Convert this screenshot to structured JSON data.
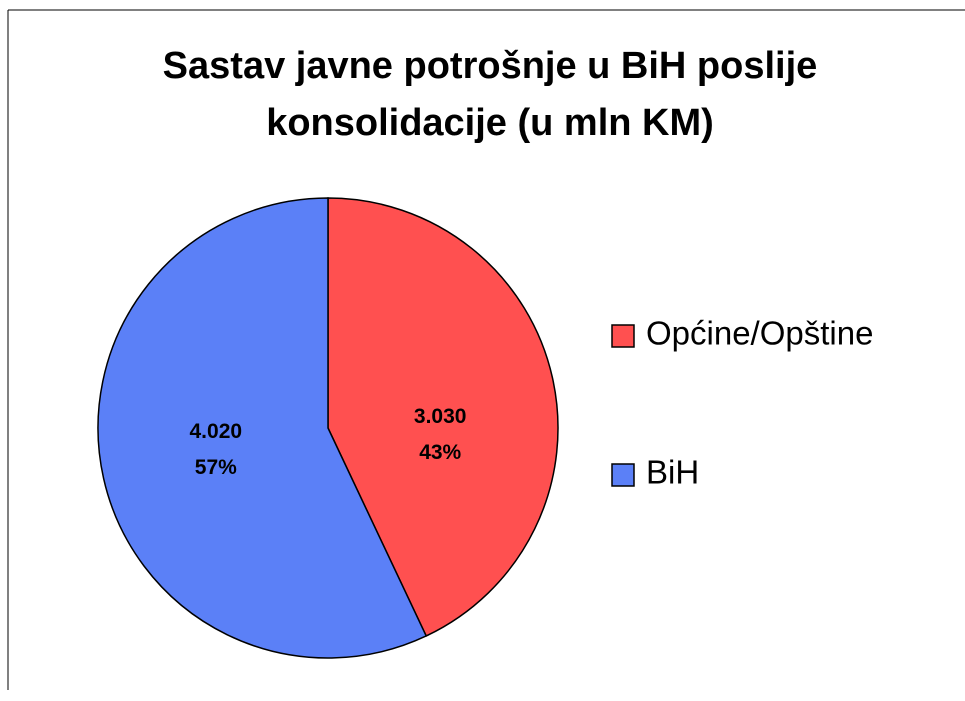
{
  "chart_data": {
    "type": "pie",
    "title": "Sastav javne potrošnje u BiH poslije konsolidacije (u mln KM)",
    "categories": [
      "Općine/Opštine",
      "BiH"
    ],
    "values": [
      3030,
      4020
    ],
    "value_labels": [
      "3.030",
      "4.020"
    ],
    "percents": [
      43,
      57
    ],
    "percent_labels": [
      "43%",
      "57%"
    ],
    "colors": [
      "#ff5050",
      "#5b80f7"
    ],
    "legend": "right"
  }
}
